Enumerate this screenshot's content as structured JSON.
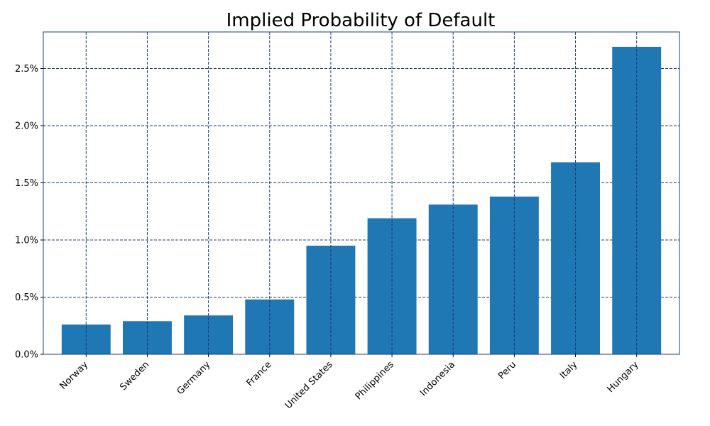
{
  "chart_data": {
    "type": "bar",
    "title": "Implied Probability of Default",
    "xlabel": "",
    "ylabel": "",
    "categories": [
      "Norway",
      "Sweden",
      "Germany",
      "France",
      "United States",
      "Philippines",
      "Indonesia",
      "Peru",
      "Italy",
      "Hungary"
    ],
    "values": [
      0.26,
      0.29,
      0.34,
      0.48,
      0.95,
      1.19,
      1.31,
      1.38,
      1.68,
      2.69
    ],
    "ylim": [
      0,
      2.82
    ],
    "yticks": [
      0.0,
      0.5,
      1.0,
      1.5,
      2.0,
      2.5
    ],
    "ytick_labels": [
      "0.0%",
      "0.5%",
      "1.0%",
      "1.5%",
      "2.0%",
      "2.5%"
    ],
    "grid": true,
    "colors": {
      "bar": "#1f77b4",
      "grid": "#1f3a7a",
      "axes": "#1f3a7a"
    }
  }
}
